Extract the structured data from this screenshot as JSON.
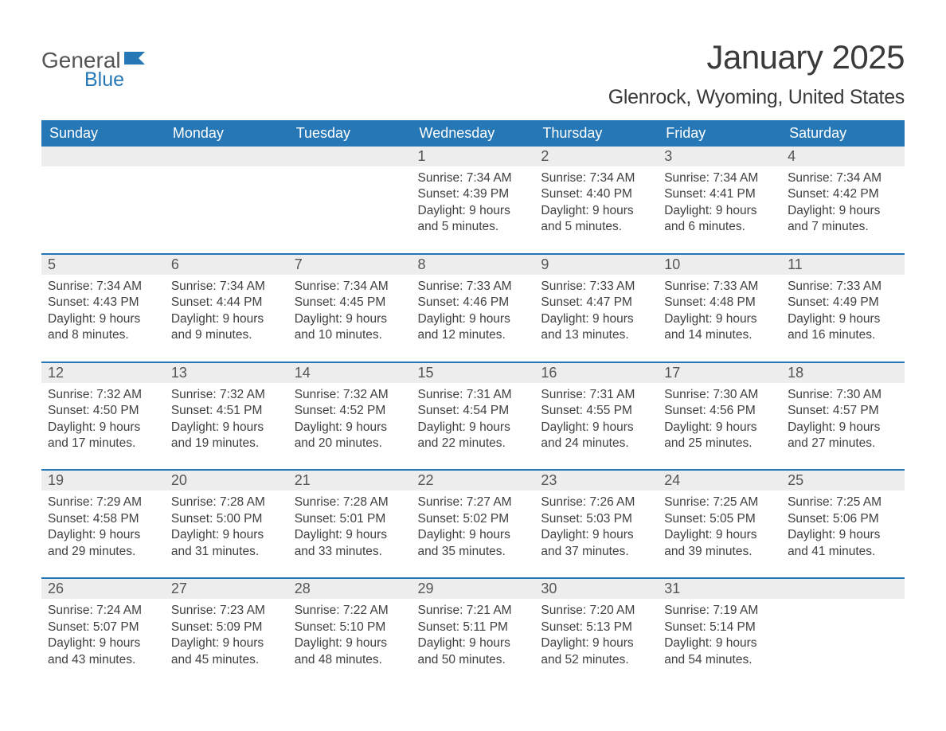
{
  "brand": {
    "text_general": "General",
    "text_blue": "Blue"
  },
  "title": "January 2025",
  "location": "Glenrock, Wyoming, United States",
  "colors": {
    "header_bg": "#2577b6",
    "header_text": "#ffffff",
    "daynum_bg": "#ededed",
    "text": "#404040",
    "rule": "#2577b6"
  },
  "weekdays": [
    "Sunday",
    "Monday",
    "Tuesday",
    "Wednesday",
    "Thursday",
    "Friday",
    "Saturday"
  ],
  "weeks": [
    [
      null,
      null,
      null,
      {
        "n": "1",
        "sr": "7:34 AM",
        "ss": "4:39 PM",
        "dl": "9 hours and 5 minutes."
      },
      {
        "n": "2",
        "sr": "7:34 AM",
        "ss": "4:40 PM",
        "dl": "9 hours and 5 minutes."
      },
      {
        "n": "3",
        "sr": "7:34 AM",
        "ss": "4:41 PM",
        "dl": "9 hours and 6 minutes."
      },
      {
        "n": "4",
        "sr": "7:34 AM",
        "ss": "4:42 PM",
        "dl": "9 hours and 7 minutes."
      }
    ],
    [
      {
        "n": "5",
        "sr": "7:34 AM",
        "ss": "4:43 PM",
        "dl": "9 hours and 8 minutes."
      },
      {
        "n": "6",
        "sr": "7:34 AM",
        "ss": "4:44 PM",
        "dl": "9 hours and 9 minutes."
      },
      {
        "n": "7",
        "sr": "7:34 AM",
        "ss": "4:45 PM",
        "dl": "9 hours and 10 minutes."
      },
      {
        "n": "8",
        "sr": "7:33 AM",
        "ss": "4:46 PM",
        "dl": "9 hours and 12 minutes."
      },
      {
        "n": "9",
        "sr": "7:33 AM",
        "ss": "4:47 PM",
        "dl": "9 hours and 13 minutes."
      },
      {
        "n": "10",
        "sr": "7:33 AM",
        "ss": "4:48 PM",
        "dl": "9 hours and 14 minutes."
      },
      {
        "n": "11",
        "sr": "7:33 AM",
        "ss": "4:49 PM",
        "dl": "9 hours and 16 minutes."
      }
    ],
    [
      {
        "n": "12",
        "sr": "7:32 AM",
        "ss": "4:50 PM",
        "dl": "9 hours and 17 minutes."
      },
      {
        "n": "13",
        "sr": "7:32 AM",
        "ss": "4:51 PM",
        "dl": "9 hours and 19 minutes."
      },
      {
        "n": "14",
        "sr": "7:32 AM",
        "ss": "4:52 PM",
        "dl": "9 hours and 20 minutes."
      },
      {
        "n": "15",
        "sr": "7:31 AM",
        "ss": "4:54 PM",
        "dl": "9 hours and 22 minutes."
      },
      {
        "n": "16",
        "sr": "7:31 AM",
        "ss": "4:55 PM",
        "dl": "9 hours and 24 minutes."
      },
      {
        "n": "17",
        "sr": "7:30 AM",
        "ss": "4:56 PM",
        "dl": "9 hours and 25 minutes."
      },
      {
        "n": "18",
        "sr": "7:30 AM",
        "ss": "4:57 PM",
        "dl": "9 hours and 27 minutes."
      }
    ],
    [
      {
        "n": "19",
        "sr": "7:29 AM",
        "ss": "4:58 PM",
        "dl": "9 hours and 29 minutes."
      },
      {
        "n": "20",
        "sr": "7:28 AM",
        "ss": "5:00 PM",
        "dl": "9 hours and 31 minutes."
      },
      {
        "n": "21",
        "sr": "7:28 AM",
        "ss": "5:01 PM",
        "dl": "9 hours and 33 minutes."
      },
      {
        "n": "22",
        "sr": "7:27 AM",
        "ss": "5:02 PM",
        "dl": "9 hours and 35 minutes."
      },
      {
        "n": "23",
        "sr": "7:26 AM",
        "ss": "5:03 PM",
        "dl": "9 hours and 37 minutes."
      },
      {
        "n": "24",
        "sr": "7:25 AM",
        "ss": "5:05 PM",
        "dl": "9 hours and 39 minutes."
      },
      {
        "n": "25",
        "sr": "7:25 AM",
        "ss": "5:06 PM",
        "dl": "9 hours and 41 minutes."
      }
    ],
    [
      {
        "n": "26",
        "sr": "7:24 AM",
        "ss": "5:07 PM",
        "dl": "9 hours and 43 minutes."
      },
      {
        "n": "27",
        "sr": "7:23 AM",
        "ss": "5:09 PM",
        "dl": "9 hours and 45 minutes."
      },
      {
        "n": "28",
        "sr": "7:22 AM",
        "ss": "5:10 PM",
        "dl": "9 hours and 48 minutes."
      },
      {
        "n": "29",
        "sr": "7:21 AM",
        "ss": "5:11 PM",
        "dl": "9 hours and 50 minutes."
      },
      {
        "n": "30",
        "sr": "7:20 AM",
        "ss": "5:13 PM",
        "dl": "9 hours and 52 minutes."
      },
      {
        "n": "31",
        "sr": "7:19 AM",
        "ss": "5:14 PM",
        "dl": "9 hours and 54 minutes."
      },
      null
    ]
  ],
  "labels": {
    "sunrise": "Sunrise: ",
    "sunset": "Sunset: ",
    "daylight": "Daylight: "
  }
}
